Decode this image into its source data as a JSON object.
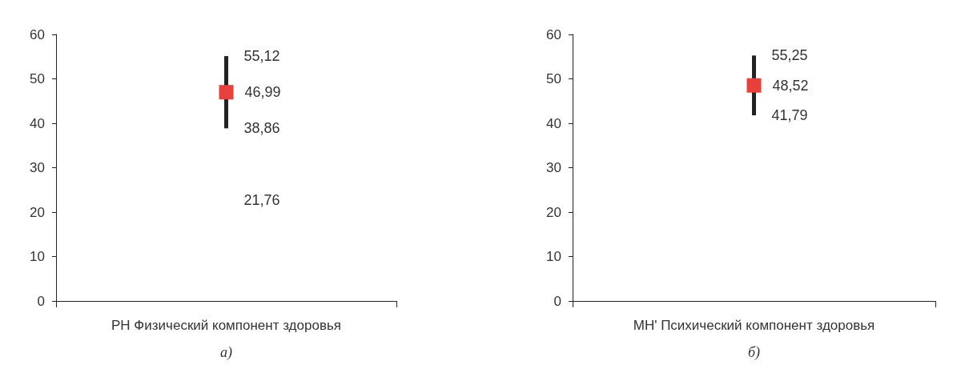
{
  "chart_data": [
    {
      "type": "scatter",
      "subtitle": "а)",
      "categories": [
        "PH Физический компонент здоровья"
      ],
      "values": [
        46.99
      ],
      "errors": [
        [
          38.86,
          55.12
        ]
      ],
      "value_labels": [
        "46,99"
      ],
      "color": "#e8403a",
      "marker": "square",
      "ylim": [
        0,
        60
      ],
      "yticks": [
        0,
        10,
        20,
        30,
        40,
        50,
        60
      ],
      "annotations": [
        {
          "text": "55,12",
          "x": "PH Физический компонент здоровья",
          "y": 55.12
        },
        {
          "text": "38,86",
          "x": "PH Физический компонент здоровья",
          "y": 38.86
        },
        "21,76"
      ]
    },
    {
      "type": "scatter",
      "subtitle": "б)",
      "categories": [
        "MH' Психический компонент здоровья"
      ],
      "values": [
        48.52
      ],
      "errors": [
        [
          41.79,
          55.25
        ]
      ],
      "value_labels": [
        "48,52"
      ],
      "color": "#e8403a",
      "marker": "square",
      "ylim": [
        0,
        60
      ],
      "yticks": [
        0,
        10,
        20,
        30,
        40,
        50,
        60
      ],
      "annotations": [
        {
          "text": "55,25",
          "x": "MH' Психический компонент здоровья",
          "y": 55.25
        },
        {
          "text": "41,79",
          "x": "MH' Психический компонент здоровья",
          "y": 41.79
        }
      ]
    }
  ]
}
